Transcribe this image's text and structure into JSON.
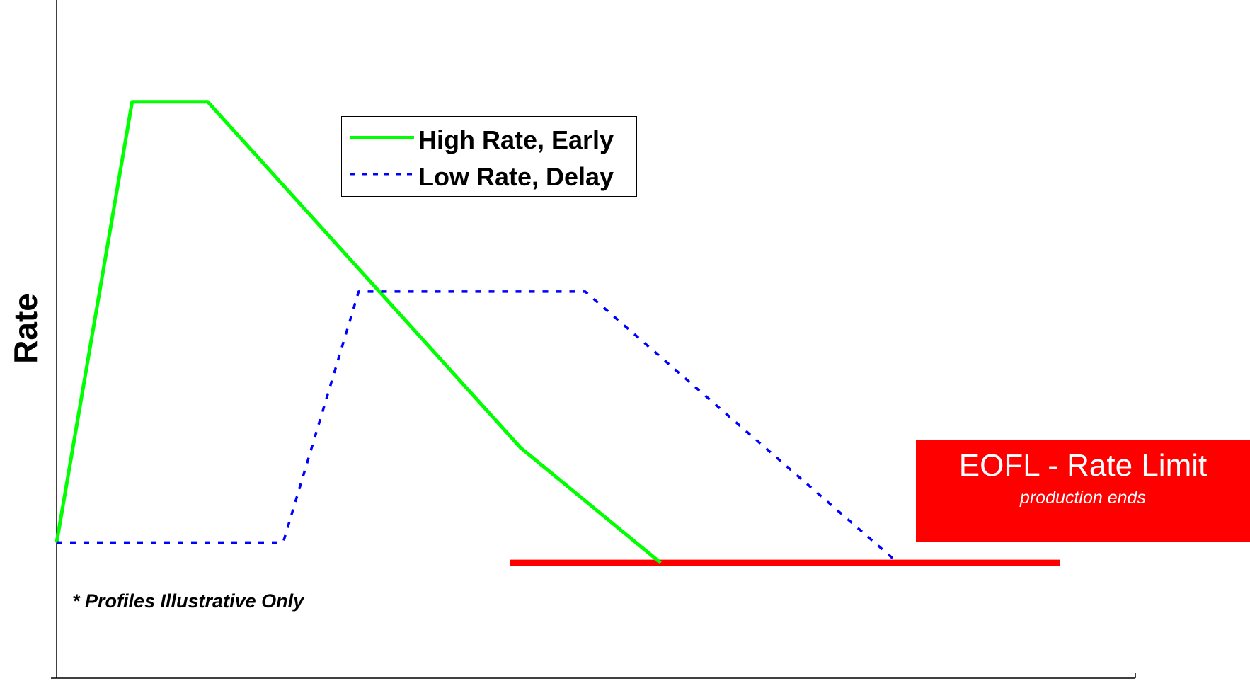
{
  "chart_data": {
    "type": "line",
    "title": "",
    "xlabel": "",
    "ylabel": "Rate",
    "grid": false,
    "legend_position": "top-center",
    "xlim": [
      0,
      100
    ],
    "ylim": [
      0,
      100
    ],
    "series": [
      {
        "name": "High Rate, Early",
        "color": "#00ff00",
        "style": "solid",
        "points": [
          [
            0,
            20
          ],
          [
            7,
            85
          ],
          [
            14,
            85
          ],
          [
            43,
            34
          ],
          [
            56,
            17
          ]
        ]
      },
      {
        "name": "Low Rate, Delay",
        "color": "#0000ff",
        "style": "dotted",
        "points": [
          [
            0,
            20
          ],
          [
            21,
            20
          ],
          [
            28,
            57
          ],
          [
            49,
            57
          ],
          [
            78,
            17
          ]
        ]
      }
    ],
    "rate_limit": {
      "color": "#ff0000",
      "y": 17,
      "x_start": 42,
      "x_end": 93
    },
    "annotations": {
      "eofl_title": "EOFL - Rate Limit",
      "eofl_subtitle": "production ends",
      "note": "* Profiles Illustrative Only"
    }
  }
}
